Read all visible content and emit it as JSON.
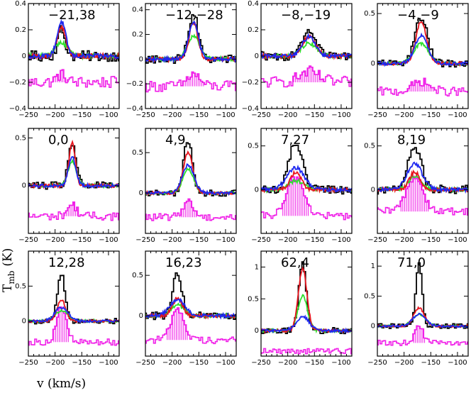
{
  "chart_data": {
    "type": "line",
    "figure_layout": "3x4 grid of spectra",
    "xlabel": "v (km/s)",
    "ylabel": "T_mb (K)",
    "ylabel_main": "T",
    "ylabel_sub": "mb",
    "ylabel_unit": "(K)",
    "xlim": [
      -250,
      -80
    ],
    "xticks": [
      -250,
      -200,
      -150,
      -100
    ],
    "colors": {
      "black": "#000000",
      "red": "#e8141e",
      "green": "#2ee02e",
      "blue": "#1e28f0",
      "residual": "#f020e8",
      "frame": "#000000"
    },
    "panels": [
      {
        "label": "−21,38",
        "ylim": [
          -0.4,
          0.4
        ],
        "yticks": [
          "0.4",
          "0.2",
          "0",
          "−0.2",
          "−0.4"
        ],
        "yvals": [
          0.4,
          0.2,
          0,
          -0.2,
          -0.4
        ],
        "center": -188,
        "peak_black": 0.2,
        "w_black": 7,
        "peak_red": 0.22,
        "w_red": 8,
        "peak_green": 0.1,
        "w_green": 12,
        "peak_blue": 0.26,
        "w_blue": 8,
        "noise": 0.04,
        "res_off": -0.2,
        "res_peak": 0.06
      },
      {
        "label": "−12,−28",
        "ylim": [
          -0.4,
          0.45
        ],
        "yticks": [
          "0.4",
          "0.2",
          "0",
          "−0.2",
          "−0.4"
        ],
        "yvals": [
          0.4,
          0.2,
          0,
          -0.2,
          -0.4
        ],
        "center": -160,
        "peak_black": 0.36,
        "w_black": 9,
        "peak_red": 0.3,
        "w_red": 8,
        "peak_green": 0.18,
        "w_green": 12,
        "peak_blue": 0.3,
        "w_blue": 9,
        "noise": 0.035,
        "res_off": -0.22,
        "res_peak": 0.1
      },
      {
        "label": "−8,−19",
        "ylim": [
          -0.4,
          0.4
        ],
        "yticks": [
          "0.4",
          "0.2",
          "0",
          "−0.2",
          "−0.4"
        ],
        "yvals": [
          0.4,
          0.2,
          0,
          -0.2,
          -0.4
        ],
        "center": -160,
        "peak_black": 0.2,
        "w_black": 14,
        "peak_red": 0.15,
        "w_red": 12,
        "peak_green": 0.1,
        "w_green": 14,
        "peak_blue": 0.15,
        "w_blue": 12,
        "noise": 0.035,
        "res_off": -0.2,
        "res_peak": 0.08
      },
      {
        "label": "−4,−9",
        "ylim": [
          -0.45,
          0.6
        ],
        "yticks": [
          "0.5",
          "0"
        ],
        "yvals": [
          0.5,
          0
        ],
        "center": -168,
        "peak_black": 0.45,
        "w_black": 12,
        "peak_red": 0.42,
        "w_red": 10,
        "peak_green": 0.2,
        "w_green": 14,
        "peak_blue": 0.28,
        "w_blue": 12,
        "noise": 0.035,
        "res_off": -0.28,
        "res_peak": 0.1
      },
      {
        "label": "0,0",
        "ylim": [
          -0.5,
          0.6
        ],
        "yticks": [
          "0.5",
          "0"
        ],
        "yvals": [
          0.5,
          0
        ],
        "center": -168,
        "peak_black": 0.45,
        "w_black": 7,
        "peak_red": 0.45,
        "w_red": 6,
        "peak_green": 0.25,
        "w_green": 8,
        "peak_blue": 0.3,
        "w_blue": 7,
        "noise": 0.04,
        "res_off": -0.32,
        "res_peak": 0.12
      },
      {
        "label": "4,9",
        "ylim": [
          -0.5,
          0.8
        ],
        "yticks": [
          "0.5",
          "0"
        ],
        "yvals": [
          0.5,
          0
        ],
        "center": -170,
        "peak_black": 0.66,
        "w_black": 8,
        "peak_red": 0.5,
        "w_red": 9,
        "peak_green": 0.3,
        "w_green": 10,
        "peak_blue": 0.35,
        "w_blue": 11,
        "noise": 0.04,
        "res_off": -0.3,
        "res_peak": 0.2
      },
      {
        "label": "7,27",
        "ylim": [
          -0.5,
          0.7
        ],
        "yticks": [
          "0.5",
          "0"
        ],
        "yvals": [
          0.5,
          0
        ],
        "center": -185,
        "peak_black": 0.55,
        "w_black": 12,
        "peak_red": 0.2,
        "w_red": 10,
        "peak_green": 0.1,
        "w_green": 14,
        "peak_blue": 0.25,
        "w_blue": 16,
        "noise": 0.05,
        "res_off": -0.3,
        "res_peak": 0.45
      },
      {
        "label": "8,19",
        "ylim": [
          -0.5,
          0.7
        ],
        "yticks": [
          "0.5",
          "0"
        ],
        "yvals": [
          0.5,
          0
        ],
        "center": -180,
        "peak_black": 0.5,
        "w_black": 12,
        "peak_red": 0.2,
        "w_red": 10,
        "peak_green": 0.15,
        "w_green": 12,
        "peak_blue": 0.3,
        "w_blue": 14,
        "noise": 0.05,
        "res_off": -0.25,
        "res_peak": 0.4
      },
      {
        "label": "12,28",
        "ylim": [
          -0.5,
          1.0
        ],
        "yticks": [
          "0.5",
          "0"
        ],
        "yvals": [
          0.5,
          0
        ],
        "center": -188,
        "peak_black": 0.66,
        "w_black": 7,
        "peak_red": 0.3,
        "w_red": 8,
        "peak_green": 0.15,
        "w_green": 12,
        "peak_blue": 0.2,
        "w_blue": 12,
        "noise": 0.04,
        "res_off": -0.3,
        "res_peak": 0.5
      },
      {
        "label": "16,23",
        "ylim": [
          -0.5,
          0.8
        ],
        "yticks": [
          "0.5",
          "0"
        ],
        "yvals": [
          0.5,
          0
        ],
        "center": -190,
        "peak_black": 0.5,
        "w_black": 9,
        "peak_red": 0.22,
        "w_red": 9,
        "peak_green": 0.14,
        "w_green": 12,
        "peak_blue": 0.2,
        "w_blue": 14,
        "noise": 0.05,
        "res_off": -0.3,
        "res_peak": 0.4
      },
      {
        "label": "62,4",
        "ylim": [
          -0.4,
          1.25
        ],
        "yticks": [
          "1",
          "0.5",
          "0"
        ],
        "yvals": [
          1,
          0.5,
          0
        ],
        "center": -172,
        "peak_black": 1.05,
        "w_black": 7,
        "peak_red": 0.98,
        "w_red": 8,
        "peak_green": 0.55,
        "w_green": 9,
        "peak_blue": 0.22,
        "w_blue": 12,
        "noise": 0.05,
        "res_off": -0.32,
        "res_peak": 0.0
      },
      {
        "label": "71,0",
        "ylim": [
          -0.5,
          1.25
        ],
        "yticks": [
          "1",
          "0.5",
          "0"
        ],
        "yvals": [
          1,
          0.5,
          0
        ],
        "center": -172,
        "peak_black": 1.05,
        "w_black": 6,
        "peak_red": 0.3,
        "w_red": 10,
        "peak_green": 0.2,
        "w_green": 12,
        "peak_blue": 0.2,
        "w_blue": 12,
        "noise": 0.04,
        "res_off": -0.28,
        "res_peak": 0.3
      }
    ]
  }
}
